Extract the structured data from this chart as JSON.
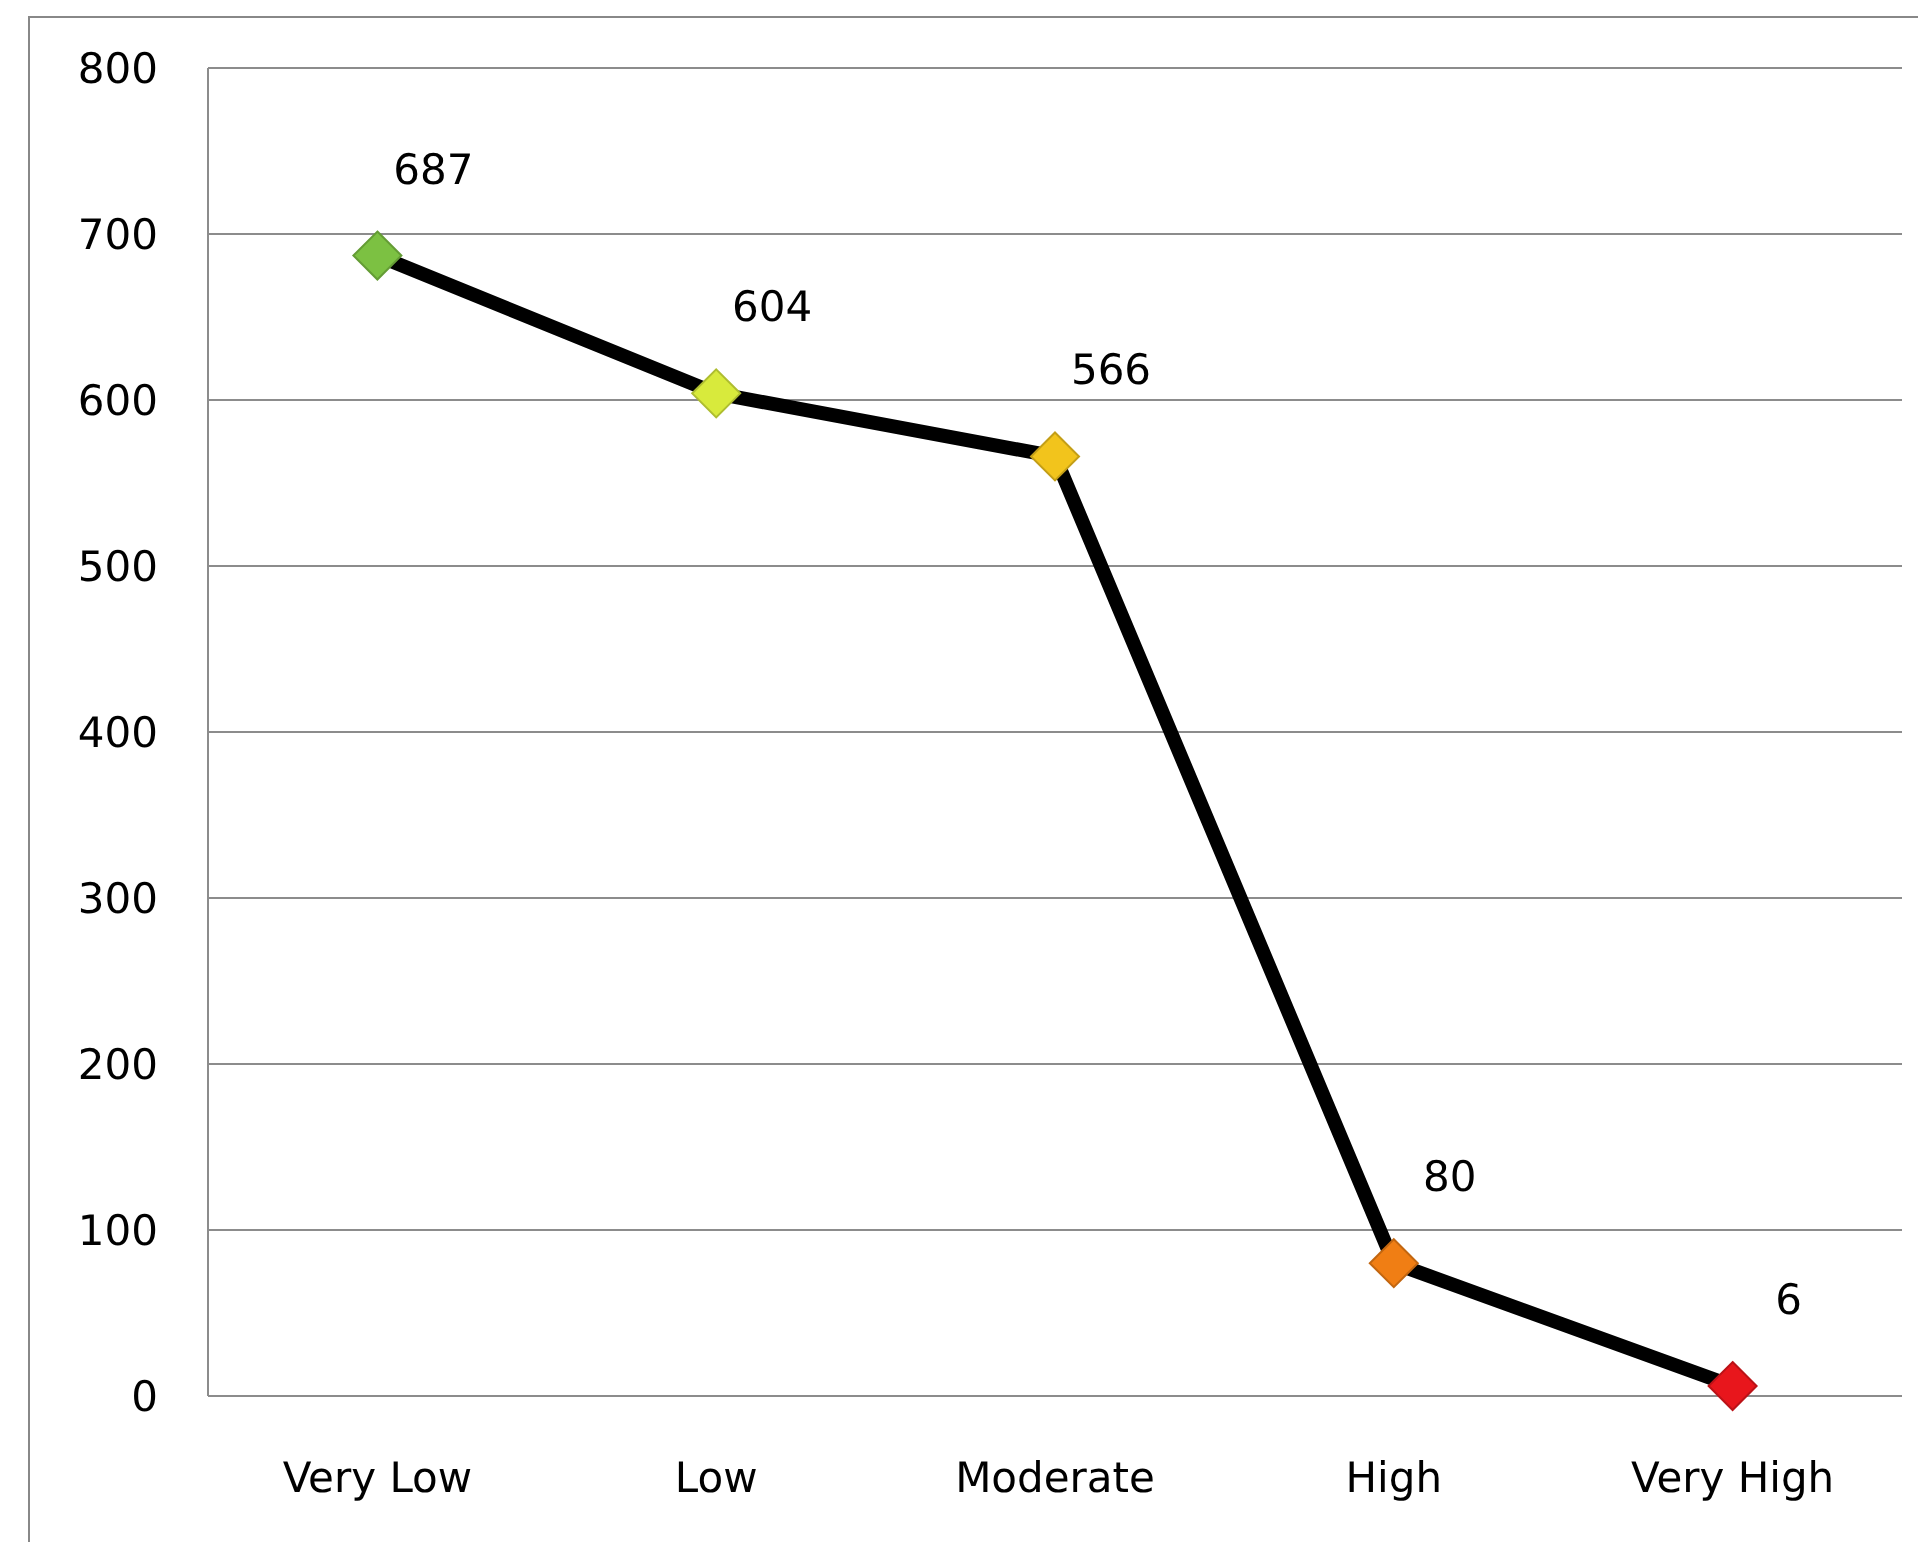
{
  "chart_data": {
    "type": "line",
    "categories": [
      "Very Low",
      "Low",
      "Moderate",
      "High",
      "Very High"
    ],
    "series": [
      {
        "color": "#000000",
        "values": [
          687,
          604,
          566,
          80,
          6
        ],
        "colors": [
          "#7cc142",
          "#d8ea3c",
          "#f2c41c",
          "#f07e14",
          "#e8161c"
        ]
      }
    ],
    "ylim": [
      0,
      800
    ],
    "yticks": [
      0,
      100,
      200,
      300,
      400,
      500,
      600,
      700,
      800
    ],
    "grid": "y",
    "marker": "diamond",
    "line_style": "solid",
    "data_labels": true
  }
}
